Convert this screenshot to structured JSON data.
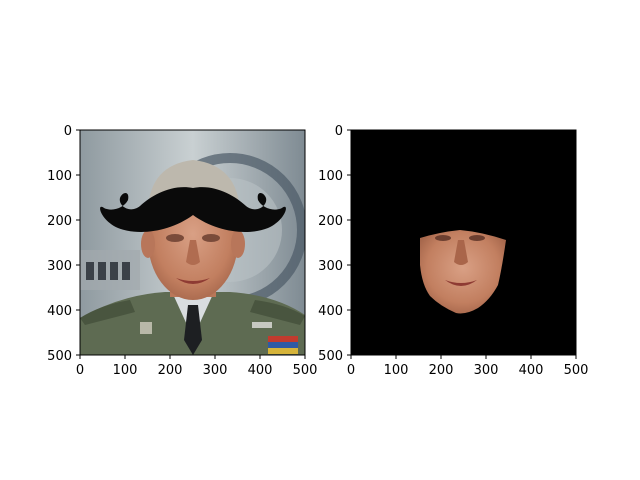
{
  "panels": [
    {
      "id": "left",
      "content": "photo-with-mustache-overlay",
      "x_ticks": [
        "0",
        "100",
        "200",
        "300",
        "400",
        "500"
      ],
      "y_ticks": [
        "0",
        "100",
        "200",
        "300",
        "400",
        "500"
      ],
      "xlim": [
        0,
        500
      ],
      "ylim": [
        500,
        0
      ]
    },
    {
      "id": "right",
      "content": "masked-face-on-black",
      "x_ticks": [
        "0",
        "100",
        "200",
        "300",
        "400",
        "500"
      ],
      "y_ticks": [
        "0",
        "100",
        "200",
        "300",
        "400",
        "500"
      ],
      "xlim": [
        0,
        500
      ],
      "ylim": [
        500,
        0
      ]
    }
  ],
  "colors": {
    "background": "#ffffff",
    "mask_background": "#000000",
    "skin": "#c98a6c",
    "uniform": "#5e6b52",
    "hair": "#bdb8ad",
    "mustache": "#0a0a0a"
  }
}
